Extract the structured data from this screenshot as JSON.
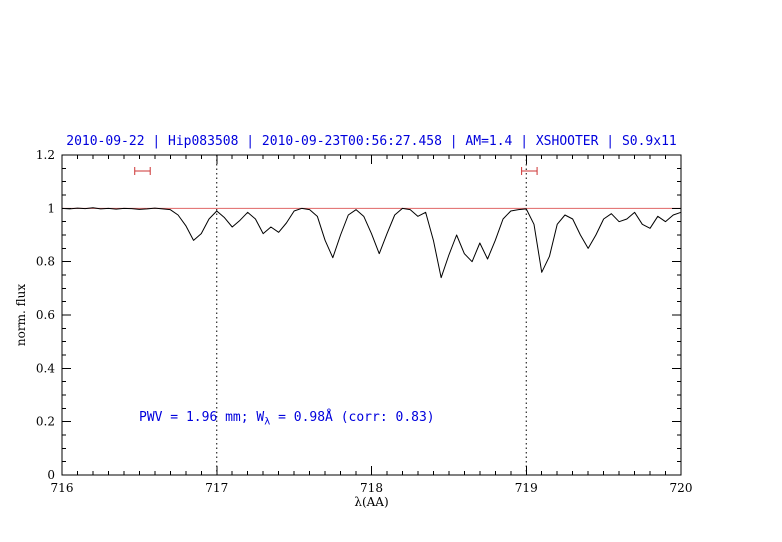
{
  "figure": {
    "background": "#ffffff",
    "title_color": "#0000dd",
    "annotation_color": "#0000dd"
  },
  "axes": {
    "frame_color": "#000000",
    "x_major_ticks": [
      716,
      717,
      718,
      719,
      720
    ],
    "x_tick_labels": [
      "716",
      "717",
      "718",
      "719",
      "720"
    ],
    "x_minor_step": 0.1,
    "y_major_ticks": [
      0,
      0.2,
      0.4,
      0.6,
      0.8,
      1,
      1.2
    ],
    "y_tick_labels": [
      "0",
      "0.2",
      "0.4",
      "0.6",
      "0.8",
      "1",
      "1.2"
    ],
    "y_minor_step": 0.05
  },
  "annotation": {
    "prefix": "PWV = 1.96 mm; W",
    "subscript": "λ",
    "suffix": " = 0.98Å (corr: 0.83)"
  },
  "chart_data": {
    "type": "line",
    "title": "2010-09-22 | Hip083508 | 2010-09-23T00:56:27.458 | AM=1.4 | XSHOOTER | S0.9x11",
    "xlabel": "λ(AA)",
    "ylabel": "norm. flux",
    "xlim": [
      716,
      720
    ],
    "ylim": [
      0,
      1.2
    ],
    "grid": false,
    "line_color": "#000000",
    "reference_line": {
      "y": 1.0,
      "color": "#e06666"
    },
    "dotted_lines_x": [
      717,
      719
    ],
    "range_markers": [
      {
        "x_center": 716.52,
        "half_width": 0.05,
        "y": 1.14,
        "color": "#cc3333"
      },
      {
        "x_center": 719.02,
        "half_width": 0.05,
        "y": 1.14,
        "color": "#cc3333"
      }
    ],
    "x": [
      716.0,
      716.05,
      716.1,
      716.15,
      716.2,
      716.25,
      716.3,
      716.35,
      716.4,
      716.45,
      716.5,
      716.55,
      716.6,
      716.65,
      716.7,
      716.75,
      716.8,
      716.85,
      716.9,
      716.95,
      717.0,
      717.05,
      717.1,
      717.15,
      717.2,
      717.25,
      717.3,
      717.35,
      717.4,
      717.45,
      717.5,
      717.55,
      717.6,
      717.65,
      717.7,
      717.75,
      717.8,
      717.85,
      717.9,
      717.95,
      718.0,
      718.05,
      718.1,
      718.15,
      718.2,
      718.25,
      718.3,
      718.35,
      718.4,
      718.45,
      718.5,
      718.55,
      718.6,
      718.65,
      718.7,
      718.75,
      718.8,
      718.85,
      718.9,
      718.95,
      719.0,
      719.05,
      719.1,
      719.15,
      719.2,
      719.25,
      719.3,
      719.35,
      719.4,
      719.45,
      719.5,
      719.55,
      719.6,
      719.65,
      719.7,
      719.75,
      719.8,
      719.85,
      719.9,
      719.95,
      720.0
    ],
    "y": [
      1.0,
      0.998,
      1.001,
      0.999,
      1.002,
      0.998,
      1.0,
      0.997,
      1.0,
      0.999,
      0.996,
      0.998,
      1.001,
      0.998,
      0.995,
      0.975,
      0.935,
      0.88,
      0.905,
      0.96,
      0.99,
      0.965,
      0.93,
      0.955,
      0.985,
      0.96,
      0.905,
      0.93,
      0.91,
      0.945,
      0.99,
      1.0,
      0.995,
      0.97,
      0.88,
      0.815,
      0.9,
      0.975,
      0.995,
      0.97,
      0.905,
      0.83,
      0.905,
      0.975,
      1.0,
      0.995,
      0.97,
      0.985,
      0.88,
      0.74,
      0.825,
      0.9,
      0.83,
      0.8,
      0.87,
      0.81,
      0.88,
      0.96,
      0.99,
      0.995,
      0.998,
      0.94,
      0.76,
      0.82,
      0.94,
      0.975,
      0.96,
      0.9,
      0.85,
      0.9,
      0.96,
      0.98,
      0.95,
      0.96,
      0.985,
      0.94,
      0.925,
      0.97,
      0.95,
      0.975,
      0.985
    ]
  }
}
